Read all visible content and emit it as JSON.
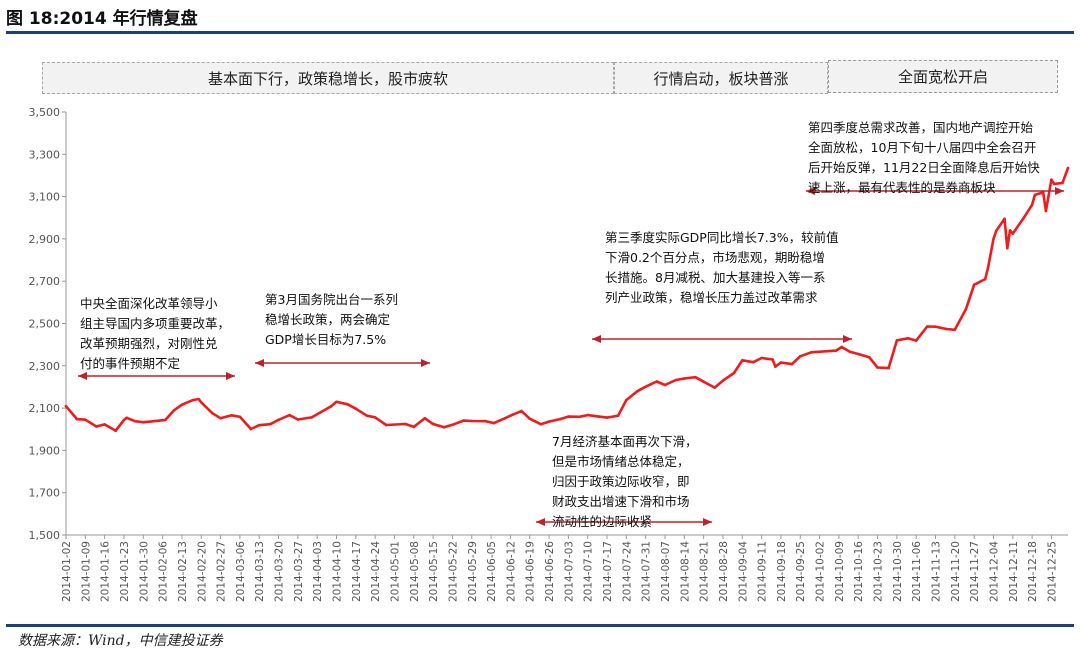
{
  "figure_title": "图 18:2014 年行情复盘",
  "source": "数据来源：Wind，中信建投证券",
  "phases": [
    {
      "label": "基本面下行，政策稳增长，股市疲软"
    },
    {
      "label": "行情启动，板块普涨"
    },
    {
      "label": "全面宽松开启"
    }
  ],
  "annotations": [
    {
      "text": "中央全面深化改革领导小\n组主导国内多项重要改革，\n改革预期强烈，对刚性兑\n付的事件预期不定"
    },
    {
      "text": "第3月国务院出台一系列\n稳增长政策，两会确定\nGDP增长目标为7.5%"
    },
    {
      "text": "7月经济基本面再次下滑，\n但是市场情绪总体稳定，\n归因于政策边际收窄，即\n财政支出增速下滑和市场\n流动性的边际收紧"
    },
    {
      "text": "第三季度实际GDP同比增长7.3%，较前值\n下滑0.2个百分点，市场悲观，期盼稳增\n长措施。8月减税、加大基建投入等一系\n列产业政策，稳增长压力盖过改革需求"
    },
    {
      "text": "第四季度总需求改善，国内地产调控开始\n全面放松，10月下旬十八届四中全会召开\n后开始反弹，11月22日全面降息后开始快\n速上涨，最有代表性的是券商板块"
    }
  ],
  "colors": {
    "line": "#ee1c1c",
    "axis": "#9a9a9a",
    "rule": "#1f3f7a",
    "arrow": "#c0202a"
  },
  "chart_data": {
    "type": "line",
    "title": "",
    "xlabel": "",
    "ylabel": "",
    "ylim": [
      1500,
      3500
    ],
    "yticks": [
      "1,500",
      "1,700",
      "1,900",
      "2,100",
      "2,300",
      "2,500",
      "2,700",
      "2,900",
      "3,100",
      "3,300",
      "3,500"
    ],
    "xticks": [
      "2014-01-02",
      "2014-01-09",
      "2014-01-16",
      "2014-01-23",
      "2014-01-30",
      "2014-02-06",
      "2014-02-13",
      "2014-02-20",
      "2014-02-27",
      "2014-03-06",
      "2014-03-13",
      "2014-03-20",
      "2014-03-27",
      "2014-04-03",
      "2014-04-10",
      "2014-04-17",
      "2014-04-24",
      "2014-05-01",
      "2014-05-08",
      "2014-05-15",
      "2014-05-22",
      "2014-05-29",
      "2014-06-05",
      "2014-06-12",
      "2014-06-19",
      "2014-06-26",
      "2014-07-03",
      "2014-07-10",
      "2014-07-17",
      "2014-07-24",
      "2014-07-31",
      "2014-08-07",
      "2014-08-14",
      "2014-08-21",
      "2014-08-28",
      "2014-09-04",
      "2014-09-11",
      "2014-09-18",
      "2014-09-25",
      "2014-10-02",
      "2014-10-09",
      "2014-10-16",
      "2014-10-23",
      "2014-10-30",
      "2014-11-06",
      "2014-11-13",
      "2014-11-20",
      "2014-11-27",
      "2014-12-04",
      "2014-12-11",
      "2014-12-18",
      "2014-12-25"
    ],
    "series": [
      {
        "x": [
          "2014-01-02",
          "2014-01-06",
          "2014-01-09",
          "2014-01-13",
          "2014-01-16",
          "2014-01-20",
          "2014-01-23",
          "2014-01-24",
          "2014-01-27",
          "2014-01-30",
          "2014-02-07",
          "2014-02-10",
          "2014-02-13",
          "2014-02-17",
          "2014-02-19",
          "2014-02-20",
          "2014-02-24",
          "2014-02-27",
          "2014-03-03",
          "2014-03-06",
          "2014-03-10",
          "2014-03-13",
          "2014-03-17",
          "2014-03-20",
          "2014-03-24",
          "2014-03-27",
          "2014-04-01",
          "2014-04-08",
          "2014-04-10",
          "2014-04-14",
          "2014-04-17",
          "2014-04-21",
          "2014-04-24",
          "2014-04-28",
          "2014-05-05",
          "2014-05-08",
          "2014-05-12",
          "2014-05-15",
          "2014-05-19",
          "2014-05-22",
          "2014-05-26",
          "2014-05-29",
          "2014-06-03",
          "2014-06-06",
          "2014-06-10",
          "2014-06-13",
          "2014-06-16",
          "2014-06-19",
          "2014-06-23",
          "2014-06-26",
          "2014-06-30",
          "2014-07-03",
          "2014-07-07",
          "2014-07-10",
          "2014-07-14",
          "2014-07-17",
          "2014-07-21",
          "2014-07-24",
          "2014-07-28",
          "2014-07-31",
          "2014-08-04",
          "2014-08-07",
          "2014-08-11",
          "2014-08-14",
          "2014-08-18",
          "2014-08-21",
          "2014-08-25",
          "2014-08-28",
          "2014-09-01",
          "2014-09-04",
          "2014-09-08",
          "2014-09-11",
          "2014-09-15",
          "2014-09-16",
          "2014-09-18",
          "2014-09-22",
          "2014-09-25",
          "2014-09-29",
          "2014-10-08",
          "2014-10-10",
          "2014-10-13",
          "2014-10-16",
          "2014-10-20",
          "2014-10-23",
          "2014-10-27",
          "2014-10-30",
          "2014-11-03",
          "2014-11-06",
          "2014-11-10",
          "2014-11-13",
          "2014-11-17",
          "2014-11-20",
          "2014-11-24",
          "2014-11-27",
          "2014-12-01",
          "2014-12-02",
          "2014-12-04",
          "2014-12-05",
          "2014-12-08",
          "2014-12-09",
          "2014-12-10",
          "2014-12-11",
          "2014-12-15",
          "2014-12-18",
          "2014-12-19",
          "2014-12-22",
          "2014-12-23",
          "2014-12-25",
          "2014-12-26",
          "2014-12-29",
          "2014-12-31"
        ],
        "values": [
          2109,
          2048,
          2045,
          2013,
          2023,
          1993,
          2044,
          2054,
          2038,
          2033,
          2044,
          2088,
          2116,
          2138,
          2143,
          2127,
          2076,
          2052,
          2066,
          2059,
          2001,
          2019,
          2024,
          2044,
          2067,
          2046,
          2056,
          2108,
          2130,
          2118,
          2097,
          2064,
          2056,
          2020,
          2025,
          2011,
          2052,
          2025,
          2009,
          2021,
          2041,
          2039,
          2038,
          2029,
          2052,
          2070,
          2086,
          2050,
          2024,
          2036,
          2048,
          2060,
          2059,
          2067,
          2060,
          2055,
          2064,
          2138,
          2180,
          2201,
          2226,
          2209,
          2233,
          2240,
          2246,
          2225,
          2197,
          2230,
          2266,
          2326,
          2317,
          2337,
          2330,
          2296,
          2315,
          2308,
          2345,
          2364,
          2372,
          2389,
          2366,
          2356,
          2340,
          2292,
          2289,
          2420,
          2430,
          2419,
          2486,
          2485,
          2474,
          2470,
          2567,
          2683,
          2710,
          2763,
          2900,
          2938,
          2995,
          2856,
          2940,
          2925,
          3000,
          3061,
          3108,
          3120,
          3032,
          3180,
          3160,
          3165,
          3235
        ]
      }
    ]
  }
}
